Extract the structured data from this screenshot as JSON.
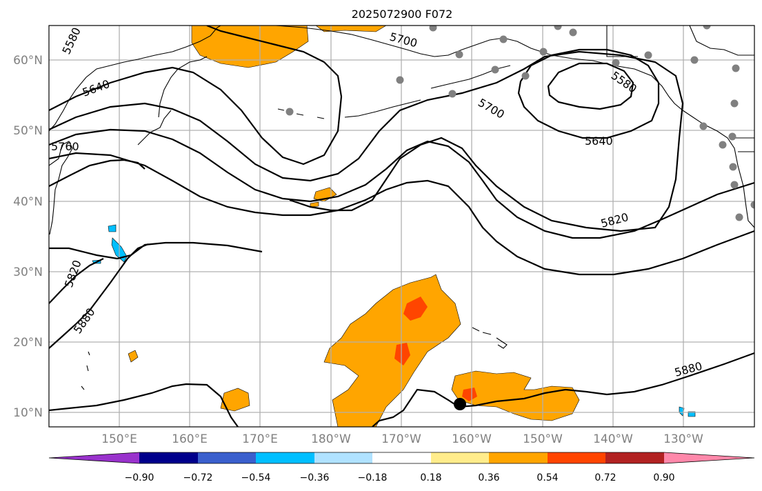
{
  "title": "2025072900 F072",
  "lat_labels": [
    "60°N",
    "50°N",
    "40°N",
    "30°N",
    "20°N",
    "10°N"
  ],
  "lon_labels": [
    "150°E",
    "160°E",
    "170°E",
    "180°W",
    "170°W",
    "160°W",
    "150°W",
    "140°W",
    "130°W"
  ],
  "contour_labels": [
    "5580",
    "5640",
    "5700",
    "5760",
    "5820",
    "5880",
    "5700",
    "5580",
    "5640",
    "5820",
    "5880"
  ],
  "colorbar": {
    "ticks": [
      "−0.90",
      "−0.72",
      "−0.54",
      "−0.36",
      "−0.18",
      "0.18",
      "0.36",
      "0.54",
      "0.72",
      "0.90"
    ],
    "colors": [
      "#9932CC",
      "#00008B",
      "#3A5FCD",
      "#00BFFF",
      "#B0E2FF",
      "#FFFFFF",
      "#FFEC8B",
      "#FFA500",
      "#FF4500",
      "#B22222",
      "#FF88AA"
    ]
  }
}
